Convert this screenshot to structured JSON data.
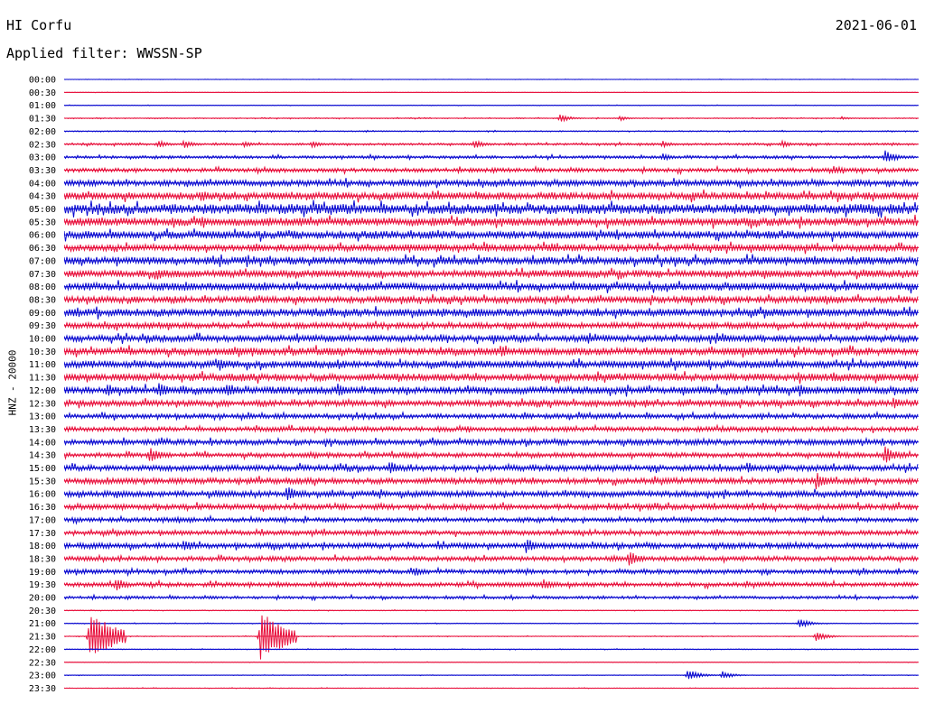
{
  "header": {
    "station": "HI Corfu",
    "date": "2021-06-01",
    "filter_label": "Applied filter: WWSSN-SP"
  },
  "colors": {
    "line_a": "#0a0ad0",
    "line_b": "#e8103c"
  },
  "chart_data": {
    "type": "line",
    "title": "HI Corfu",
    "ylabel": "HNZ - 20000",
    "row_interval_minutes": 30,
    "row_labels": [
      "00:00",
      "00:30",
      "01:00",
      "01:30",
      "02:00",
      "02:30",
      "03:00",
      "03:30",
      "04:00",
      "04:30",
      "05:00",
      "05:30",
      "06:00",
      "06:30",
      "07:00",
      "07:30",
      "08:00",
      "08:30",
      "09:00",
      "09:30",
      "10:00",
      "10:30",
      "11:00",
      "11:30",
      "12:00",
      "12:30",
      "13:00",
      "13:30",
      "14:00",
      "14:30",
      "15:00",
      "15:30",
      "16:00",
      "16:30",
      "17:00",
      "17:30",
      "18:00",
      "18:30",
      "19:00",
      "19:30",
      "20:00",
      "20:30",
      "21:00",
      "21:30",
      "22:00",
      "22:30",
      "23:00",
      "23:30"
    ],
    "row_colors_cycle": [
      "blue",
      "red"
    ],
    "noise_amplitude": [
      0.2,
      0.2,
      0.3,
      0.5,
      0.6,
      1.2,
      1.6,
      2.2,
      3.2,
      4.0,
      5.5,
      4.5,
      4.3,
      3.8,
      4.2,
      3.8,
      4.2,
      3.6,
      4.2,
      3.2,
      3.6,
      4.0,
      4.0,
      4.0,
      4.0,
      3.2,
      2.6,
      2.6,
      3.0,
      2.6,
      3.2,
      3.2,
      3.2,
      3.0,
      2.4,
      2.6,
      3.0,
      2.6,
      2.4,
      2.4,
      1.6,
      0.4,
      0.4,
      0.4,
      0.4,
      0.3,
      0.3,
      0.3
    ],
    "events": [
      {
        "row": 3,
        "t": 0.58,
        "amp": 5
      },
      {
        "row": 3,
        "t": 0.65,
        "amp": 3
      },
      {
        "row": 3,
        "t": 0.91,
        "amp": 2
      },
      {
        "row": 5,
        "t": 0.11,
        "amp": 5
      },
      {
        "row": 5,
        "t": 0.14,
        "amp": 5
      },
      {
        "row": 5,
        "t": 0.21,
        "amp": 4
      },
      {
        "row": 5,
        "t": 0.29,
        "amp": 4
      },
      {
        "row": 5,
        "t": 0.48,
        "amp": 5
      },
      {
        "row": 5,
        "t": 0.7,
        "amp": 4
      },
      {
        "row": 5,
        "t": 0.84,
        "amp": 4
      },
      {
        "row": 6,
        "t": 0.7,
        "amp": 5
      },
      {
        "row": 6,
        "t": 0.96,
        "amp": 8
      },
      {
        "row": 7,
        "t": 0.9,
        "amp": 6
      },
      {
        "row": 9,
        "t": 0.16,
        "amp": 7
      },
      {
        "row": 13,
        "t": 0.57,
        "amp": 6
      },
      {
        "row": 15,
        "t": 0.11,
        "amp": 7
      },
      {
        "row": 16,
        "t": 0.14,
        "amp": 6
      },
      {
        "row": 20,
        "t": 0.77,
        "amp": 6
      },
      {
        "row": 21,
        "t": 0.51,
        "amp": 7
      },
      {
        "row": 22,
        "t": 0.18,
        "amp": 7
      },
      {
        "row": 24,
        "t": 0.05,
        "amp": 8
      },
      {
        "row": 24,
        "t": 0.11,
        "amp": 9
      },
      {
        "row": 24,
        "t": 0.19,
        "amp": 9
      },
      {
        "row": 24,
        "t": 0.32,
        "amp": 8
      },
      {
        "row": 24,
        "t": 0.86,
        "amp": 8
      },
      {
        "row": 25,
        "t": 0.97,
        "amp": 7
      },
      {
        "row": 29,
        "t": 0.1,
        "amp": 9
      },
      {
        "row": 29,
        "t": 0.96,
        "amp": 10
      },
      {
        "row": 30,
        "t": 0.38,
        "amp": 8
      },
      {
        "row": 30,
        "t": 0.8,
        "amp": 6
      },
      {
        "row": 31,
        "t": 0.88,
        "amp": 10
      },
      {
        "row": 32,
        "t": 0.26,
        "amp": 9
      },
      {
        "row": 36,
        "t": 0.14,
        "amp": 7
      },
      {
        "row": 36,
        "t": 0.54,
        "amp": 9
      },
      {
        "row": 37,
        "t": 0.66,
        "amp": 9
      },
      {
        "row": 38,
        "t": 0.41,
        "amp": 6
      },
      {
        "row": 39,
        "t": 0.06,
        "amp": 8
      },
      {
        "row": 39,
        "t": 0.56,
        "amp": 7
      },
      {
        "row": 42,
        "t": 0.86,
        "amp": 6
      },
      {
        "row": 43,
        "t": 0.03,
        "amp": 28
      },
      {
        "row": 43,
        "t": 0.23,
        "amp": 28
      },
      {
        "row": 43,
        "t": 0.88,
        "amp": 6
      },
      {
        "row": 46,
        "t": 0.73,
        "amp": 7
      },
      {
        "row": 46,
        "t": 0.77,
        "amp": 5
      }
    ]
  }
}
